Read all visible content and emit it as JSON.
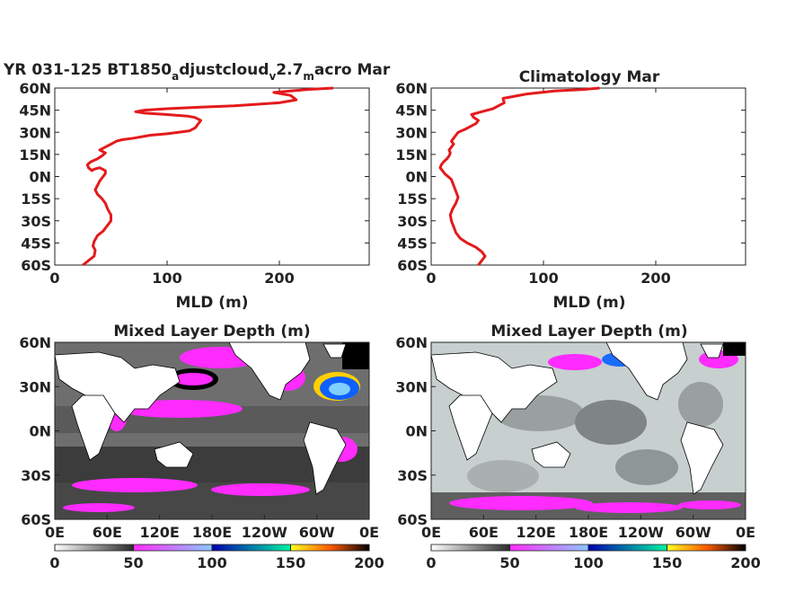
{
  "chart_data": [
    {
      "type": "line",
      "title_main": "YR 031-125 BT1850",
      "title_sub1": "a",
      "title_mid": "djustcloud",
      "title_sub2": "v",
      "title_mid2": "2.7",
      "title_sub3": "m",
      "title_end": "acro Mar",
      "xlabel": "MLD (m)",
      "xlim": [
        0,
        280
      ],
      "ylim": [
        -60,
        60
      ],
      "xticks": [
        "0",
        "100",
        "200"
      ],
      "yticks": [
        "60N",
        "45N",
        "30N",
        "15N",
        "0N",
        "15S",
        "30S",
        "45S",
        "60S"
      ],
      "color": "#e41a1c",
      "series": [
        {
          "x": [
            25,
            30,
            35,
            36,
            34,
            35,
            38,
            43,
            47,
            50,
            50,
            47,
            45,
            42,
            38,
            36,
            38,
            40,
            43,
            45,
            45,
            40,
            35,
            33,
            30,
            29,
            32,
            38,
            42,
            45,
            40,
            45,
            50,
            55,
            60,
            70,
            85,
            100,
            110,
            120,
            125,
            128,
            130,
            125,
            118,
            100,
            80,
            72,
            80,
            100,
            130,
            160,
            200,
            215,
            210,
            195,
            210,
            225,
            248
          ],
          "y": [
            -60,
            -57,
            -54,
            -50,
            -47,
            -44,
            -40,
            -37,
            -33,
            -30,
            -26,
            -22,
            -18,
            -15,
            -12,
            -9,
            -6,
            -3,
            0,
            2,
            4,
            6,
            5,
            4,
            6,
            8,
            10,
            12,
            14,
            16,
            18,
            20,
            22,
            24,
            25,
            26,
            28,
            29,
            30,
            31,
            33,
            36,
            38,
            40,
            41,
            42,
            43,
            44,
            45,
            46,
            47,
            48,
            50,
            52,
            55,
            57,
            58,
            59,
            60
          ]
        }
      ]
    },
    {
      "type": "line",
      "title": "Climatology Mar",
      "xlabel": "MLD (m)",
      "xlim": [
        0,
        280
      ],
      "ylim": [
        -60,
        60
      ],
      "xticks": [
        "0",
        "100",
        "200"
      ],
      "yticks": [
        "60N",
        "45N",
        "30N",
        "15N",
        "0N",
        "15S",
        "30S",
        "45S",
        "60S"
      ],
      "color": "#e41a1c",
      "series": [
        {
          "x": [
            42,
            45,
            48,
            45,
            40,
            32,
            26,
            22,
            20,
            18,
            17,
            19,
            22,
            24,
            22,
            20,
            18,
            15,
            12,
            10,
            8,
            9,
            11,
            14,
            16,
            17,
            16,
            18,
            20,
            18,
            20,
            22,
            24,
            30,
            35,
            40,
            42,
            38,
            36,
            45,
            55,
            60,
            65,
            64,
            85,
            110,
            135,
            150
          ],
          "y": [
            -60,
            -57,
            -54,
            -51,
            -48,
            -45,
            -42,
            -38,
            -34,
            -30,
            -26,
            -22,
            -18,
            -14,
            -10,
            -6,
            -2,
            0,
            2,
            4,
            6,
            8,
            10,
            12,
            14,
            16,
            18,
            20,
            22,
            24,
            26,
            28,
            30,
            32,
            34,
            36,
            38,
            40,
            42,
            44,
            46,
            48,
            50,
            53,
            56,
            58,
            59,
            60
          ]
        }
      ]
    },
    {
      "type": "heatmap",
      "title": "Mixed Layer Depth (m)",
      "xticks": [
        "0E",
        "60E",
        "120E",
        "180E",
        "120W",
        "60W",
        "0E"
      ],
      "yticks": [
        "60N",
        "30N",
        "0N",
        "30S",
        "60S"
      ],
      "colorbar_ticks": [
        "0",
        "50",
        "100",
        "150",
        "200"
      ],
      "colorbar_range": [
        0,
        200
      ]
    },
    {
      "type": "heatmap",
      "title": "Mixed Layer Depth (m)",
      "xticks": [
        "0E",
        "60E",
        "120E",
        "180E",
        "120W",
        "60W",
        "0E"
      ],
      "yticks": [
        "60N",
        "30N",
        "0N",
        "30S",
        "60S"
      ],
      "colorbar_ticks": [
        "0",
        "50",
        "100",
        "150",
        "200"
      ],
      "colorbar_range": [
        0,
        200
      ]
    }
  ]
}
